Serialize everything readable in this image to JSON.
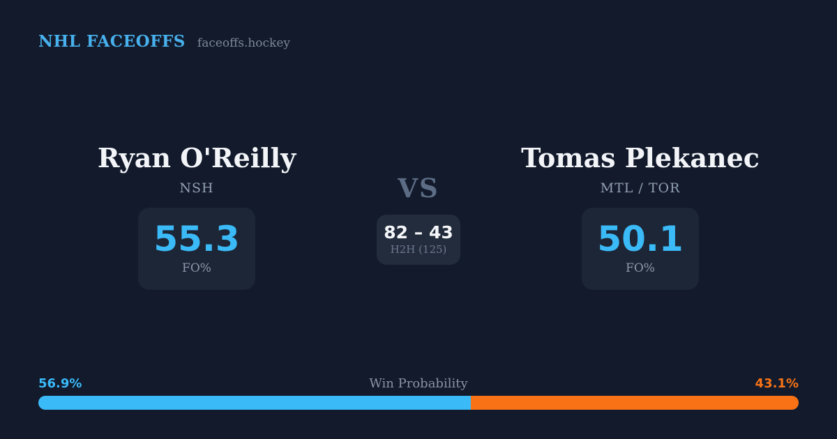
{
  "header": {
    "brand": "NHL FACEOFFS",
    "site": "faceoffs.hockey"
  },
  "players": {
    "left": {
      "name": "Ryan O'Reilly",
      "team": "NSH",
      "stat_value": "55.3",
      "stat_label": "FO%"
    },
    "right": {
      "name": "Tomas Plekanec",
      "team": "MTL / TOR",
      "stat_value": "50.1",
      "stat_label": "FO%"
    }
  },
  "matchup": {
    "vs_label": "VS",
    "h2h_score": "82 – 43",
    "h2h_sub": "H2H (125)"
  },
  "win_probability": {
    "title": "Win Probability",
    "left_label": "56.9%",
    "right_label": "43.1%",
    "left_value": 56.9,
    "right_value": 43.1
  },
  "colors": {
    "background": "#121a2b",
    "card_background": "#1d2636",
    "h2h_card_background": "#232c3c",
    "brand_blue": "#48b0ec",
    "stat_blue": "#3bbaf8",
    "bar_blue": "#3bbaf8",
    "bar_orange": "#f97316",
    "name_white": "#f2f4f8",
    "muted_gray": "#8c98ab",
    "vs_gray": "#5c6c85"
  }
}
